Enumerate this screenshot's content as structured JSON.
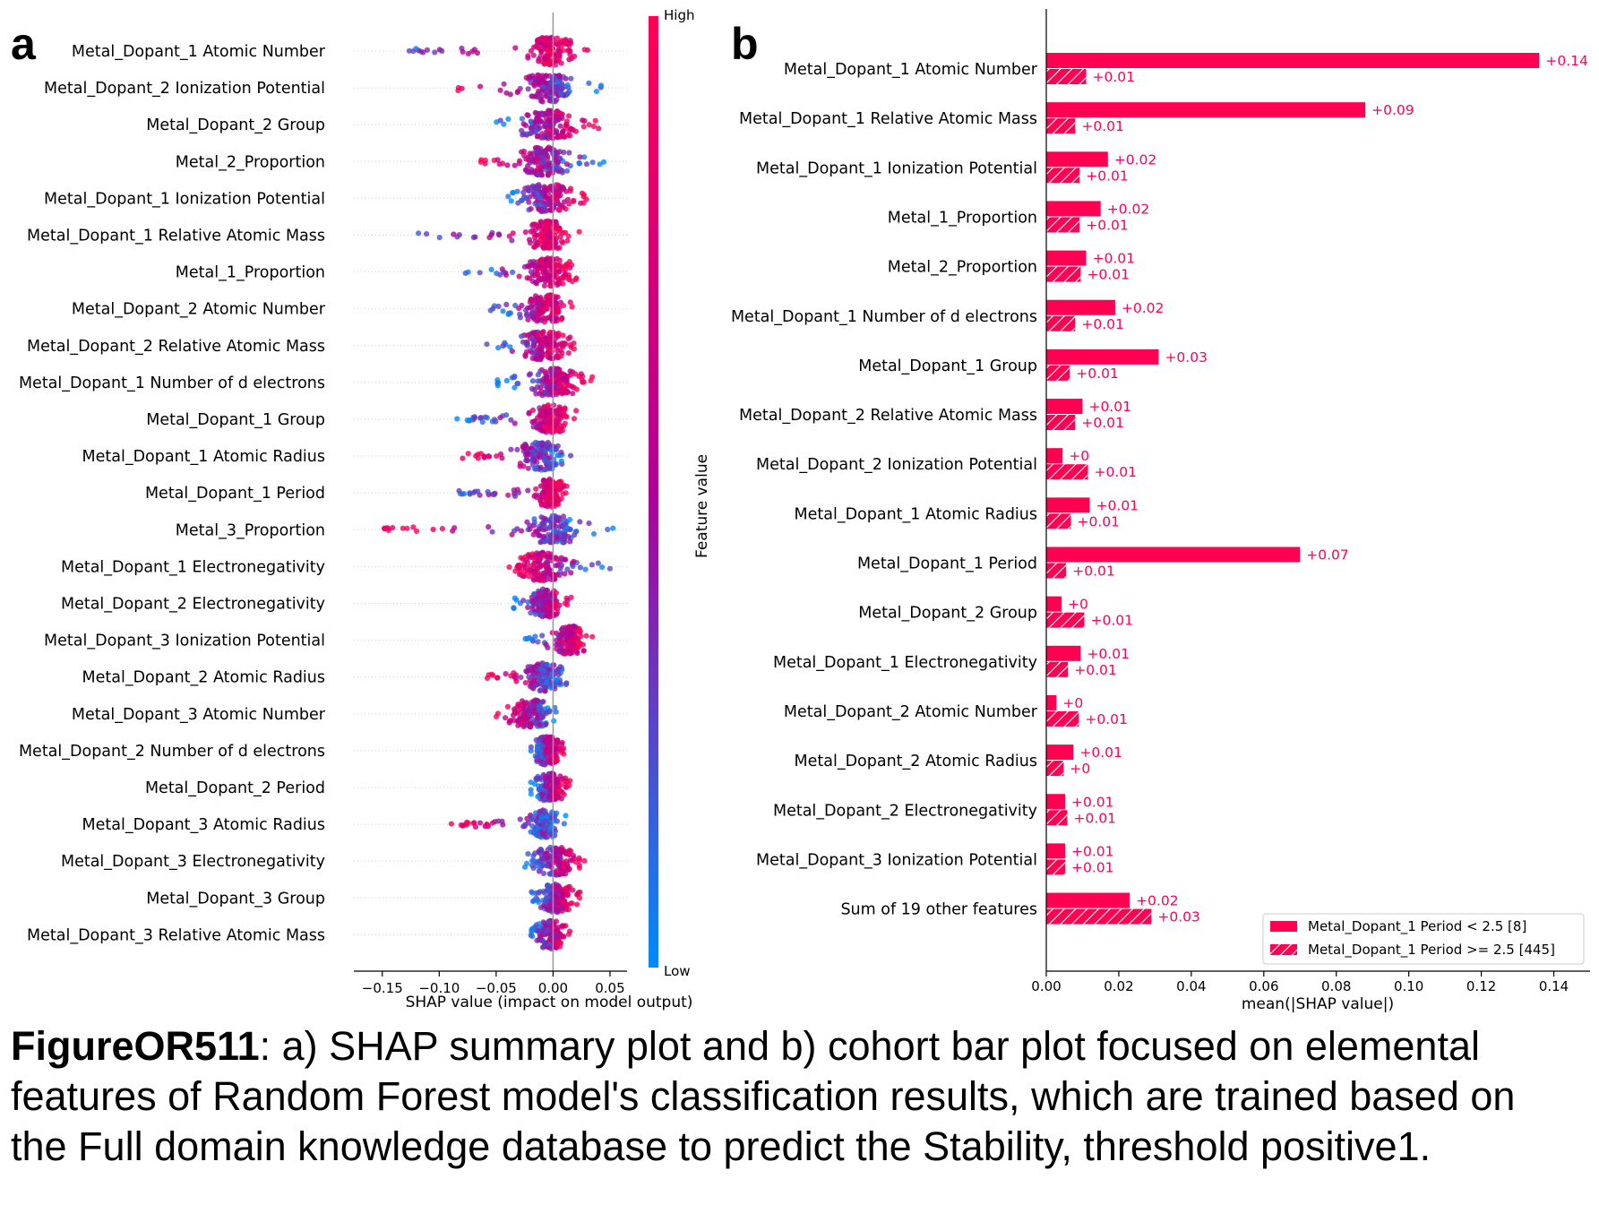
{
  "panels": {
    "a": {
      "letter": "a",
      "chart_data": {
        "type": "scatter",
        "subtype": "shap-beeswarm",
        "xlabel": "SHAP value (impact on model output)",
        "xlim": [
          -0.175,
          0.065
        ],
        "xticks": [
          -0.15,
          -0.1,
          -0.05,
          0.0,
          0.05
        ],
        "xtick_labels": [
          "−0.15",
          "−0.10",
          "−0.05",
          "0.00",
          "0.05"
        ],
        "colorbar": {
          "label": "Feature value",
          "high": "High",
          "low": "Low",
          "high_color": "#ff0052",
          "mid_color": "#b00095",
          "low_color": "#008bfb"
        },
        "features": [
          {
            "name": "Metal_Dopant_1 Atomic Number",
            "min": -0.16,
            "max": 0.035,
            "core": [
              -0.03,
              0.025
            ],
            "sign": 1
          },
          {
            "name": "Metal_Dopant_2 Ionization Potential",
            "min": -0.09,
            "max": 0.05,
            "core": [
              -0.035,
              0.025
            ],
            "sign": -1
          },
          {
            "name": "Metal_Dopant_2 Group",
            "min": -0.05,
            "max": 0.04,
            "core": [
              -0.04,
              0.03
            ],
            "sign": 1
          },
          {
            "name": "Metal_2_Proportion",
            "min": -0.07,
            "max": 0.045,
            "core": [
              -0.04,
              0.025
            ],
            "sign": -1
          },
          {
            "name": "Metal_Dopant_1 Ionization Potential",
            "min": -0.04,
            "max": 0.03,
            "core": [
              -0.035,
              0.025
            ],
            "sign": 1
          },
          {
            "name": "Metal_Dopant_1 Relative Atomic Mass",
            "min": -0.13,
            "max": 0.025,
            "core": [
              -0.03,
              0.02
            ],
            "sign": 1
          },
          {
            "name": "Metal_1_Proportion",
            "min": -0.08,
            "max": 0.025,
            "core": [
              -0.03,
              0.025
            ],
            "sign": 1
          },
          {
            "name": "Metal_Dopant_2 Atomic Number",
            "min": -0.055,
            "max": 0.02,
            "core": [
              -0.035,
              0.02
            ],
            "sign": 1
          },
          {
            "name": "Metal_Dopant_2 Relative Atomic Mass",
            "min": -0.06,
            "max": 0.02,
            "core": [
              -0.035,
              0.02
            ],
            "sign": 1
          },
          {
            "name": "Metal_Dopant_1 Number of d electrons",
            "min": -0.05,
            "max": 0.035,
            "core": [
              -0.03,
              0.03
            ],
            "sign": 1
          },
          {
            "name": "Metal_Dopant_1 Group",
            "min": -0.085,
            "max": 0.025,
            "core": [
              -0.03,
              0.025
            ],
            "sign": 1
          },
          {
            "name": "Metal_Dopant_1 Atomic Radius",
            "min": -0.08,
            "max": 0.02,
            "core": [
              -0.04,
              0.02
            ],
            "sign": -1
          },
          {
            "name": "Metal_Dopant_1 Period",
            "min": -0.085,
            "max": 0.015,
            "core": [
              -0.02,
              0.015
            ],
            "sign": 1
          },
          {
            "name": "Metal_3_Proportion",
            "min": -0.155,
            "max": 0.055,
            "core": [
              -0.03,
              0.03
            ],
            "sign": -1
          },
          {
            "name": "Metal_Dopant_1 Electronegativity",
            "min": -0.04,
            "max": 0.05,
            "core": [
              -0.04,
              0.02
            ],
            "sign": -1
          },
          {
            "name": "Metal_Dopant_2 Electronegativity",
            "min": -0.035,
            "max": 0.02,
            "core": [
              -0.03,
              0.015
            ],
            "sign": 1
          },
          {
            "name": "Metal_Dopant_3 Ionization Potential",
            "min": -0.025,
            "max": 0.035,
            "core": [
              -0.005,
              0.035
            ],
            "sign": 1
          },
          {
            "name": "Metal_Dopant_2 Atomic Radius",
            "min": -0.06,
            "max": 0.015,
            "core": [
              -0.03,
              0.015
            ],
            "sign": -1
          },
          {
            "name": "Metal_Dopant_3 Atomic Number",
            "min": -0.05,
            "max": 0.005,
            "core": [
              -0.045,
              0.005
            ],
            "sign": -1
          },
          {
            "name": "Metal_Dopant_2 Number of d electrons",
            "min": -0.02,
            "max": 0.01,
            "core": [
              -0.02,
              0.01
            ],
            "sign": 1
          },
          {
            "name": "Metal_Dopant_2 Period",
            "min": -0.02,
            "max": 0.015,
            "core": [
              -0.02,
              0.015
            ],
            "sign": 1
          },
          {
            "name": "Metal_Dopant_3 Atomic Radius",
            "min": -0.09,
            "max": 0.015,
            "core": [
              -0.03,
              0.015
            ],
            "sign": -1
          },
          {
            "name": "Metal_Dopant_3 Electronegativity",
            "min": -0.025,
            "max": 0.03,
            "core": [
              -0.025,
              0.03
            ],
            "sign": 1
          },
          {
            "name": "Metal_Dopant_3 Group",
            "min": -0.02,
            "max": 0.025,
            "core": [
              -0.02,
              0.025
            ],
            "sign": 1
          },
          {
            "name": "Metal_Dopant_3 Relative Atomic Mass",
            "min": -0.02,
            "max": 0.015,
            "core": [
              -0.02,
              0.015
            ],
            "sign": 1
          }
        ]
      }
    },
    "b": {
      "letter": "b",
      "chart_data": {
        "type": "bar",
        "orientation": "horizontal",
        "xlabel": "mean(|SHAP value|)",
        "xlim": [
          0,
          0.15
        ],
        "xticks": [
          0.0,
          0.02,
          0.04,
          0.06,
          0.08,
          0.1,
          0.12,
          0.14
        ],
        "xtick_labels": [
          "0.00",
          "0.02",
          "0.04",
          "0.06",
          "0.08",
          "0.10",
          "0.12",
          "0.14"
        ],
        "color": "#ff0052",
        "legend_position": "lower-right",
        "categories": [
          "Metal_Dopant_1 Atomic Number",
          "Metal_Dopant_1 Relative Atomic Mass",
          "Metal_Dopant_1 Ionization Potential",
          "Metal_1_Proportion",
          "Metal_2_Proportion",
          "Metal_Dopant_1 Number of d electrons",
          "Metal_Dopant_1 Group",
          "Metal_Dopant_2 Relative Atomic Mass",
          "Metal_Dopant_2 Ionization Potential",
          "Metal_Dopant_1 Atomic Radius",
          "Metal_Dopant_1 Period",
          "Metal_Dopant_2 Group",
          "Metal_Dopant_1 Electronegativity",
          "Metal_Dopant_2 Atomic Number",
          "Metal_Dopant_2 Atomic Radius",
          "Metal_Dopant_2 Electronegativity",
          "Metal_Dopant_3 Ionization Potential",
          "Sum of 19 other features"
        ],
        "series": [
          {
            "name": "Metal_Dopant_1 Period < 2.5 [8]",
            "pattern": "solid",
            "values": [
              0.136,
              0.088,
              0.017,
              0.015,
              0.011,
              0.019,
              0.031,
              0.01,
              0.0045,
              0.012,
              0.07,
              0.0042,
              0.0095,
              0.0028,
              0.0075,
              0.0052,
              0.0052,
              0.023
            ],
            "labels": [
              "+0.14",
              "+0.09",
              "+0.02",
              "+0.02",
              "+0.01",
              "+0.02",
              "+0.03",
              "+0.01",
              "+0",
              "+0.01",
              "+0.07",
              "+0",
              "+0.01",
              "+0",
              "+0.01",
              "+0.01",
              "+0.01",
              "+0.02"
            ]
          },
          {
            "name": "Metal_Dopant_1 Period >= 2.5 [445]",
            "pattern": "hatched",
            "values": [
              0.011,
              0.008,
              0.0092,
              0.0092,
              0.0095,
              0.008,
              0.0065,
              0.008,
              0.0115,
              0.0068,
              0.0055,
              0.0105,
              0.006,
              0.009,
              0.0048,
              0.0058,
              0.0052,
              0.029
            ],
            "labels": [
              "+0.01",
              "+0.01",
              "+0.01",
              "+0.01",
              "+0.01",
              "+0.01",
              "+0.01",
              "+0.01",
              "+0.01",
              "+0.01",
              "+0.01",
              "+0.01",
              "+0.01",
              "+0.01",
              "+0",
              "+0.01",
              "+0.01",
              "+0.03"
            ]
          }
        ]
      }
    }
  },
  "caption": {
    "bold": "FigureOR511",
    "text": ": a) SHAP summary plot and b) cohort bar plot focused on elemental features of Random Forest model's classification results, which are trained based on the Full domain knowledge database to predict the Stability, threshold positive1."
  }
}
